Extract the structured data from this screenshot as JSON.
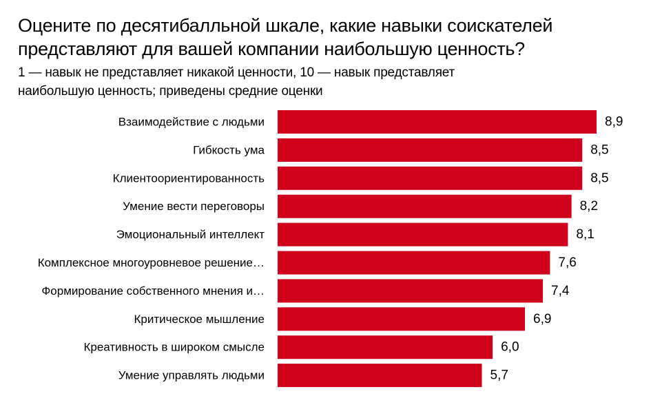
{
  "chart_data": {
    "type": "bar",
    "orientation": "horizontal",
    "title": "Оцените по десятибалльной шкале, какие навыки соискателей\nпредставляют для вашей компании наибольшую ценность?",
    "subtitle": "1 — навык не представляет никакой ценности, 10 — навык представляет\nнаибольшую ценность; приведены средние оценки",
    "categories": [
      "Взаимодействие с людьми",
      "Гибкость ума",
      "Клиентоориентированность",
      "Умение вести переговоры",
      "Эмоциональный интеллект",
      "Комплексное многоуровневое решение…",
      "Формирование собственного мнения и…",
      "Критическое мышление",
      "Креативность в широком смысле",
      "Умение управлять людьми"
    ],
    "values": [
      8.9,
      8.5,
      8.5,
      8.2,
      8.1,
      7.6,
      7.4,
      6.9,
      6.0,
      5.7
    ],
    "value_labels": [
      "8,9",
      "8,5",
      "8,5",
      "8,2",
      "8,1",
      "7,6",
      "7,4",
      "6,9",
      "6,0",
      "5,7"
    ],
    "xlim": [
      0,
      8.9
    ],
    "bar_color": "#d0021b",
    "grid": false,
    "axes_visible": false
  }
}
